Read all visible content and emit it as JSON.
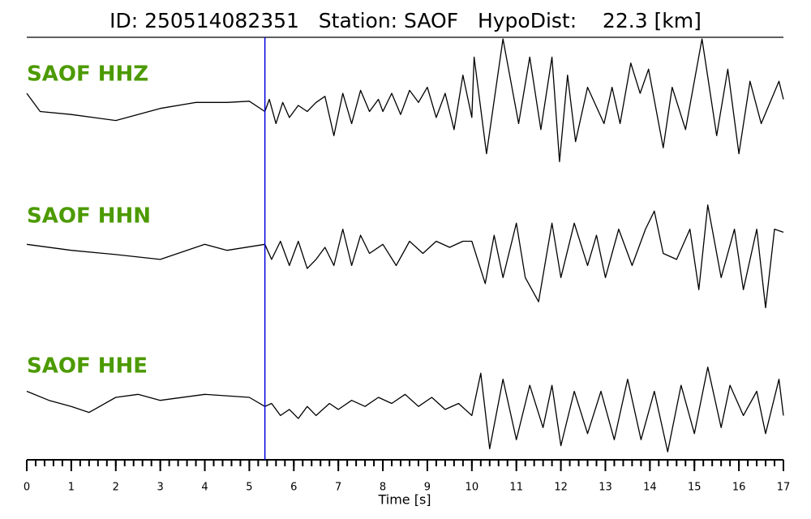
{
  "chart_data": {
    "type": "seismogram",
    "title": "ID: 250514082351   Station: SAOF   HypoDist:    22.3 [km]",
    "xlabel": "Time [s]",
    "xlim": [
      0,
      17
    ],
    "xticks": [
      0,
      1,
      2,
      3,
      4,
      5,
      6,
      7,
      8,
      9,
      10,
      11,
      12,
      13,
      14,
      15,
      16,
      17
    ],
    "minor_xtick_step": 0.2,
    "pick_time": 5.35,
    "pick_color": "#0000dd",
    "label_color": "#4c9a00",
    "trace_color": "#000000",
    "ylim": [
      -1.1,
      1.1
    ],
    "series": [
      {
        "name": "SAOF HHZ",
        "x": [
          0,
          0.3,
          1,
          2,
          3,
          3.8,
          4.5,
          5,
          5.35,
          5.45,
          5.6,
          5.75,
          5.9,
          6.1,
          6.3,
          6.5,
          6.7,
          6.9,
          7.1,
          7.3,
          7.5,
          7.7,
          7.9,
          8.0,
          8.2,
          8.4,
          8.6,
          8.8,
          9.0,
          9.2,
          9.4,
          9.6,
          9.8,
          10.0,
          10.05,
          10.33,
          10.7,
          11.05,
          11.3,
          11.55,
          11.8,
          11.97,
          12.15,
          12.33,
          12.6,
          12.97,
          13.15,
          13.33,
          13.57,
          13.78,
          13.97,
          14.3,
          14.5,
          14.8,
          15.17,
          15.5,
          15.75,
          16.0,
          16.25,
          16.5,
          16.9,
          17
        ],
        "values": [
          0.2,
          -0.1,
          -0.15,
          -0.25,
          -0.05,
          0.05,
          0.05,
          0.07,
          -0.1,
          0.1,
          -0.3,
          0.05,
          -0.2,
          0.0,
          -0.1,
          0.05,
          0.15,
          -0.5,
          0.2,
          -0.3,
          0.25,
          -0.1,
          0.1,
          -0.1,
          0.2,
          -0.15,
          0.25,
          0.05,
          0.3,
          -0.2,
          0.2,
          -0.4,
          0.5,
          -0.2,
          0.8,
          -0.8,
          1.1,
          -0.3,
          0.8,
          -0.4,
          0.8,
          -0.93,
          0.5,
          -0.6,
          0.3,
          -0.3,
          0.3,
          -0.3,
          0.7,
          0.2,
          0.6,
          -0.7,
          0.3,
          -0.4,
          1.1,
          -0.5,
          0.6,
          -0.8,
          0.4,
          -0.3,
          0.4,
          0.1
        ]
      },
      {
        "name": "SAOF HHN",
        "x": [
          0,
          1,
          2,
          3,
          4,
          4.5,
          5.35,
          5.5,
          5.7,
          5.9,
          6.1,
          6.3,
          6.5,
          6.7,
          6.9,
          7.1,
          7.3,
          7.5,
          7.7,
          8.0,
          8.3,
          8.6,
          8.9,
          9.2,
          9.5,
          9.8,
          10.0,
          10.3,
          10.5,
          10.7,
          11.0,
          11.2,
          11.5,
          11.8,
          12.0,
          12.3,
          12.6,
          12.8,
          13.0,
          13.3,
          13.6,
          13.9,
          14.1,
          14.3,
          14.6,
          14.9,
          15.1,
          15.3,
          15.6,
          15.9,
          16.1,
          16.4,
          16.6,
          16.8,
          17
        ],
        "values": [
          0.05,
          -0.05,
          -0.12,
          -0.2,
          0.05,
          -0.05,
          0.05,
          -0.2,
          0.1,
          -0.3,
          0.1,
          -0.35,
          -0.2,
          0.0,
          -0.3,
          0.3,
          -0.3,
          0.2,
          -0.1,
          0.05,
          -0.3,
          0.1,
          -0.1,
          0.1,
          0.0,
          0.1,
          0.1,
          -0.6,
          0.2,
          -0.5,
          0.4,
          -0.5,
          -0.9,
          0.4,
          -0.5,
          0.4,
          -0.3,
          0.2,
          -0.5,
          0.3,
          -0.3,
          0.3,
          0.6,
          -0.1,
          -0.2,
          0.3,
          -0.7,
          0.7,
          -0.5,
          0.3,
          -0.7,
          0.3,
          -1.0,
          0.3,
          0.25
        ]
      },
      {
        "name": "SAOF HHE",
        "x": [
          0,
          0.5,
          1.0,
          1.4,
          2.0,
          2.5,
          3.0,
          4.0,
          5.0,
          5.35,
          5.5,
          5.7,
          5.9,
          6.1,
          6.3,
          6.5,
          6.8,
          7.0,
          7.3,
          7.6,
          7.9,
          8.2,
          8.5,
          8.8,
          9.1,
          9.4,
          9.7,
          10.0,
          10.2,
          10.4,
          10.7,
          11.0,
          11.3,
          11.6,
          11.8,
          12.0,
          12.3,
          12.6,
          12.9,
          13.2,
          13.5,
          13.8,
          14.1,
          14.4,
          14.7,
          15.0,
          15.3,
          15.6,
          15.8,
          16.1,
          16.4,
          16.6,
          16.9,
          17
        ],
        "values": [
          0.1,
          -0.05,
          -0.15,
          -0.25,
          0.0,
          0.05,
          -0.05,
          0.05,
          0.0,
          -0.15,
          -0.1,
          -0.3,
          -0.2,
          -0.35,
          -0.15,
          -0.3,
          -0.1,
          -0.2,
          -0.05,
          -0.15,
          0.0,
          -0.1,
          0.05,
          -0.15,
          0.0,
          -0.2,
          -0.1,
          -0.3,
          0.4,
          -0.85,
          0.3,
          -0.7,
          0.2,
          -0.5,
          0.2,
          -0.8,
          0.1,
          -0.6,
          0.1,
          -0.7,
          0.3,
          -0.7,
          0.1,
          -0.9,
          0.2,
          -0.6,
          0.5,
          -0.5,
          0.2,
          -0.3,
          0.1,
          -0.6,
          0.3,
          -0.3
        ]
      }
    ]
  }
}
